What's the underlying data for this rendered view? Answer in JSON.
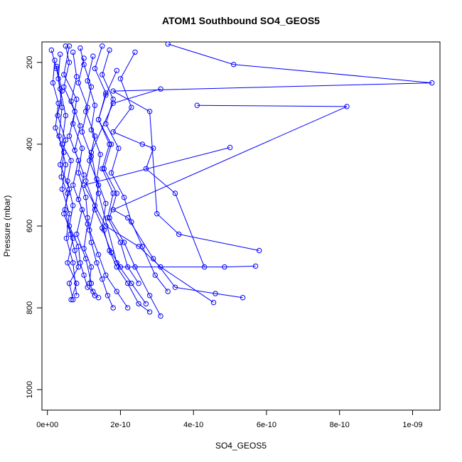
{
  "chart_data": {
    "type": "line",
    "title": "ATOM1 Southbound SO4_GEOS5",
    "xlabel": "SO4_GEOS5",
    "ylabel": "Pressure (mbar)",
    "xlim": [
      -1.5e-11,
      1.075e-09
    ],
    "ylim": [
      1050,
      150
    ],
    "y_reversed": true,
    "grid": false,
    "legend": "none",
    "x_ticks": [
      0,
      2e-10,
      4e-10,
      6e-10,
      8e-10,
      1e-09
    ],
    "x_tick_labels": [
      "0e+00",
      "2e-10",
      "4e-10",
      "6e-10",
      "8e-10",
      "1e-09"
    ],
    "y_ticks": [
      200,
      400,
      600,
      800,
      1000
    ],
    "y_tick_labels": [
      "200",
      "400",
      "600",
      "800",
      "1000"
    ],
    "marker": "open-circle",
    "line_color": "#0000ff",
    "series": [
      {
        "x": [
          1.1e-11,
          2.5e-11,
          3.5e-11,
          5e-11,
          4e-11,
          6.5e-11,
          5.5e-11,
          7e-11,
          6e-11,
          8.5e-11,
          9e-11,
          1e-10,
          1.1e-10,
          1.25e-10,
          1.3e-10,
          1.4e-10
        ],
        "y": [
          170,
          215,
          265,
          330,
          400,
          440,
          490,
          550,
          600,
          650,
          690,
          720,
          750,
          760,
          770,
          775
        ]
      },
      {
        "x": [
          2e-11,
          1.5e-11,
          3e-11,
          2.2e-11,
          4.5e-11,
          3.8e-11,
          5.5e-11,
          4.8e-11,
          6.3e-11,
          7.5e-11,
          8.5e-11,
          6e-11,
          7e-11
        ],
        "y": [
          195,
          250,
          300,
          360,
          420,
          480,
          520,
          560,
          620,
          660,
          700,
          740,
          780
        ]
      },
      {
        "x": [
          6e-11,
          4.5e-11,
          8e-11,
          7e-11,
          9.5e-11,
          8.5e-11,
          1.05e-10,
          1.1e-10,
          1.2e-10,
          1.35e-10,
          1.5e-10,
          1.65e-10,
          1.8e-10
        ],
        "y": [
          160,
          230,
          290,
          350,
          410,
          470,
          530,
          580,
          640,
          690,
          730,
          770,
          800
        ]
      },
      {
        "x": [
          9e-11,
          1e-10,
          1.2e-10,
          1.05e-10,
          1.3e-10,
          1.15e-10,
          1.4e-10,
          1.3e-10,
          1.55e-10,
          1.7e-10,
          1.9e-10,
          2.2e-10,
          2.5e-10,
          2.8e-10
        ],
        "y": [
          165,
          205,
          260,
          320,
          380,
          440,
          500,
          560,
          610,
          660,
          700,
          740,
          790,
          810
        ]
      },
      {
        "x": [
          1.5e-10,
          1.3e-10,
          1.6e-10,
          1.4e-10,
          1.75e-10,
          1.55e-10,
          1.9e-10,
          1.7e-10,
          2.1e-10,
          2.4e-10,
          2.8e-10,
          3.1e-10
        ],
        "y": [
          160,
          215,
          275,
          340,
          400,
          460,
          520,
          580,
          640,
          700,
          770,
          820
        ]
      },
      {
        "x": [
          2.4e-10,
          2e-10,
          2.3e-10,
          1.8e-10,
          2.6e-10,
          2.9e-10,
          2.7e-10,
          3.5e-10,
          4.3e-10
        ],
        "y": [
          175,
          240,
          310,
          370,
          400,
          410,
          460,
          520,
          700
        ]
      },
      {
        "x": [
          3.3e-10,
          5.1e-10,
          1.053e-09,
          1.8e-10,
          2.8e-10,
          3e-10,
          3.6e-10,
          5.8e-10
        ],
        "y": [
          155,
          205,
          250,
          270,
          320,
          570,
          620,
          660
        ]
      },
      {
        "x": [
          4.1e-10,
          8.2e-10,
          1.8e-10,
          2.2e-10,
          2.9e-10,
          3.5e-10,
          4.6e-10,
          5.35e-10
        ],
        "y": [
          305,
          308,
          560,
          580,
          680,
          750,
          765,
          775
        ]
      },
      {
        "x": [
          5e-10,
          1e-10,
          1.6e-10,
          2.5e-10,
          3.1e-10,
          4.55e-10
        ],
        "y": [
          408,
          500,
          600,
          650,
          700,
          787
        ]
      },
      {
        "x": [
          3.1e-10,
          1.8e-10,
          1.2e-10,
          1.4e-10,
          1.9e-10,
          2.3e-10,
          2.7e-10
        ],
        "y": [
          265,
          300,
          420,
          520,
          690,
          740,
          790
        ]
      },
      {
        "x": [
          3.5e-11,
          3e-11,
          4e-11,
          3.2e-11,
          5e-11,
          4e-11,
          6e-11,
          5.2e-11,
          7e-11,
          8e-11
        ],
        "y": [
          180,
          240,
          310,
          380,
          450,
          510,
          570,
          630,
          690,
          770
        ]
      },
      {
        "x": [
          1.25e-10,
          1.1e-10,
          1.3e-10,
          1.2e-10,
          1.45e-10,
          1.35e-10,
          1.6e-10,
          1.5e-10,
          1.75e-10,
          2e-10,
          4.85e-10,
          5.7e-10
        ],
        "y": [
          185,
          245,
          305,
          365,
          425,
          485,
          545,
          605,
          665,
          700,
          700,
          698
        ]
      },
      {
        "x": [
          7e-11,
          8e-11,
          6.5e-11,
          9e-11,
          7.5e-11,
          1e-10,
          8.5e-11,
          1.1e-10,
          1e-10,
          1.2e-10,
          1.15e-10,
          1.3e-10
        ],
        "y": [
          175,
          235,
          295,
          355,
          415,
          475,
          535,
          595,
          655,
          700,
          740,
          770
        ]
      },
      {
        "x": [
          1.7e-10,
          1.5e-10,
          1.8e-10,
          1.6e-10,
          1.95e-10,
          1.75e-10,
          2.1e-10,
          2.3e-10,
          2.6e-10,
          2.95e-10,
          3.3e-10
        ],
        "y": [
          170,
          230,
          290,
          350,
          410,
          470,
          530,
          590,
          650,
          720,
          760
        ]
      },
      {
        "x": [
          2.5e-11,
          4e-11,
          2.8e-11,
          5e-11,
          3.5e-11,
          6e-11,
          4.5e-11,
          7e-11,
          5.5e-11,
          8e-11,
          6.5e-11
        ],
        "y": [
          210,
          270,
          330,
          390,
          450,
          510,
          570,
          630,
          690,
          740,
          780
        ]
      },
      {
        "x": [
          1e-10,
          8.5e-11,
          1.1e-10,
          9.5e-11,
          1.2e-10,
          1.05e-10,
          1.3e-10,
          1.15e-10,
          1.4e-10,
          1.6e-10,
          1.9e-10,
          2.2e-10
        ],
        "y": [
          190,
          250,
          310,
          370,
          430,
          490,
          550,
          610,
          670,
          720,
          760,
          800
        ]
      },
      {
        "x": [
          5e-11,
          6e-11,
          4.5e-11,
          7.5e-11,
          6e-11,
          8.5e-11,
          7e-11,
          9.5e-11,
          8e-11,
          1.05e-10,
          1.2e-10
        ],
        "y": [
          160,
          200,
          260,
          320,
          380,
          440,
          500,
          560,
          620,
          680,
          740
        ]
      },
      {
        "x": [
          1.9e-10,
          1.6e-10,
          1.4e-10,
          1.7e-10,
          1.5e-10,
          1.8e-10,
          1.65e-10,
          2e-10,
          2.2e-10,
          2.5e-10
        ],
        "y": [
          220,
          280,
          340,
          400,
          460,
          520,
          580,
          640,
          700,
          740
        ]
      }
    ]
  }
}
